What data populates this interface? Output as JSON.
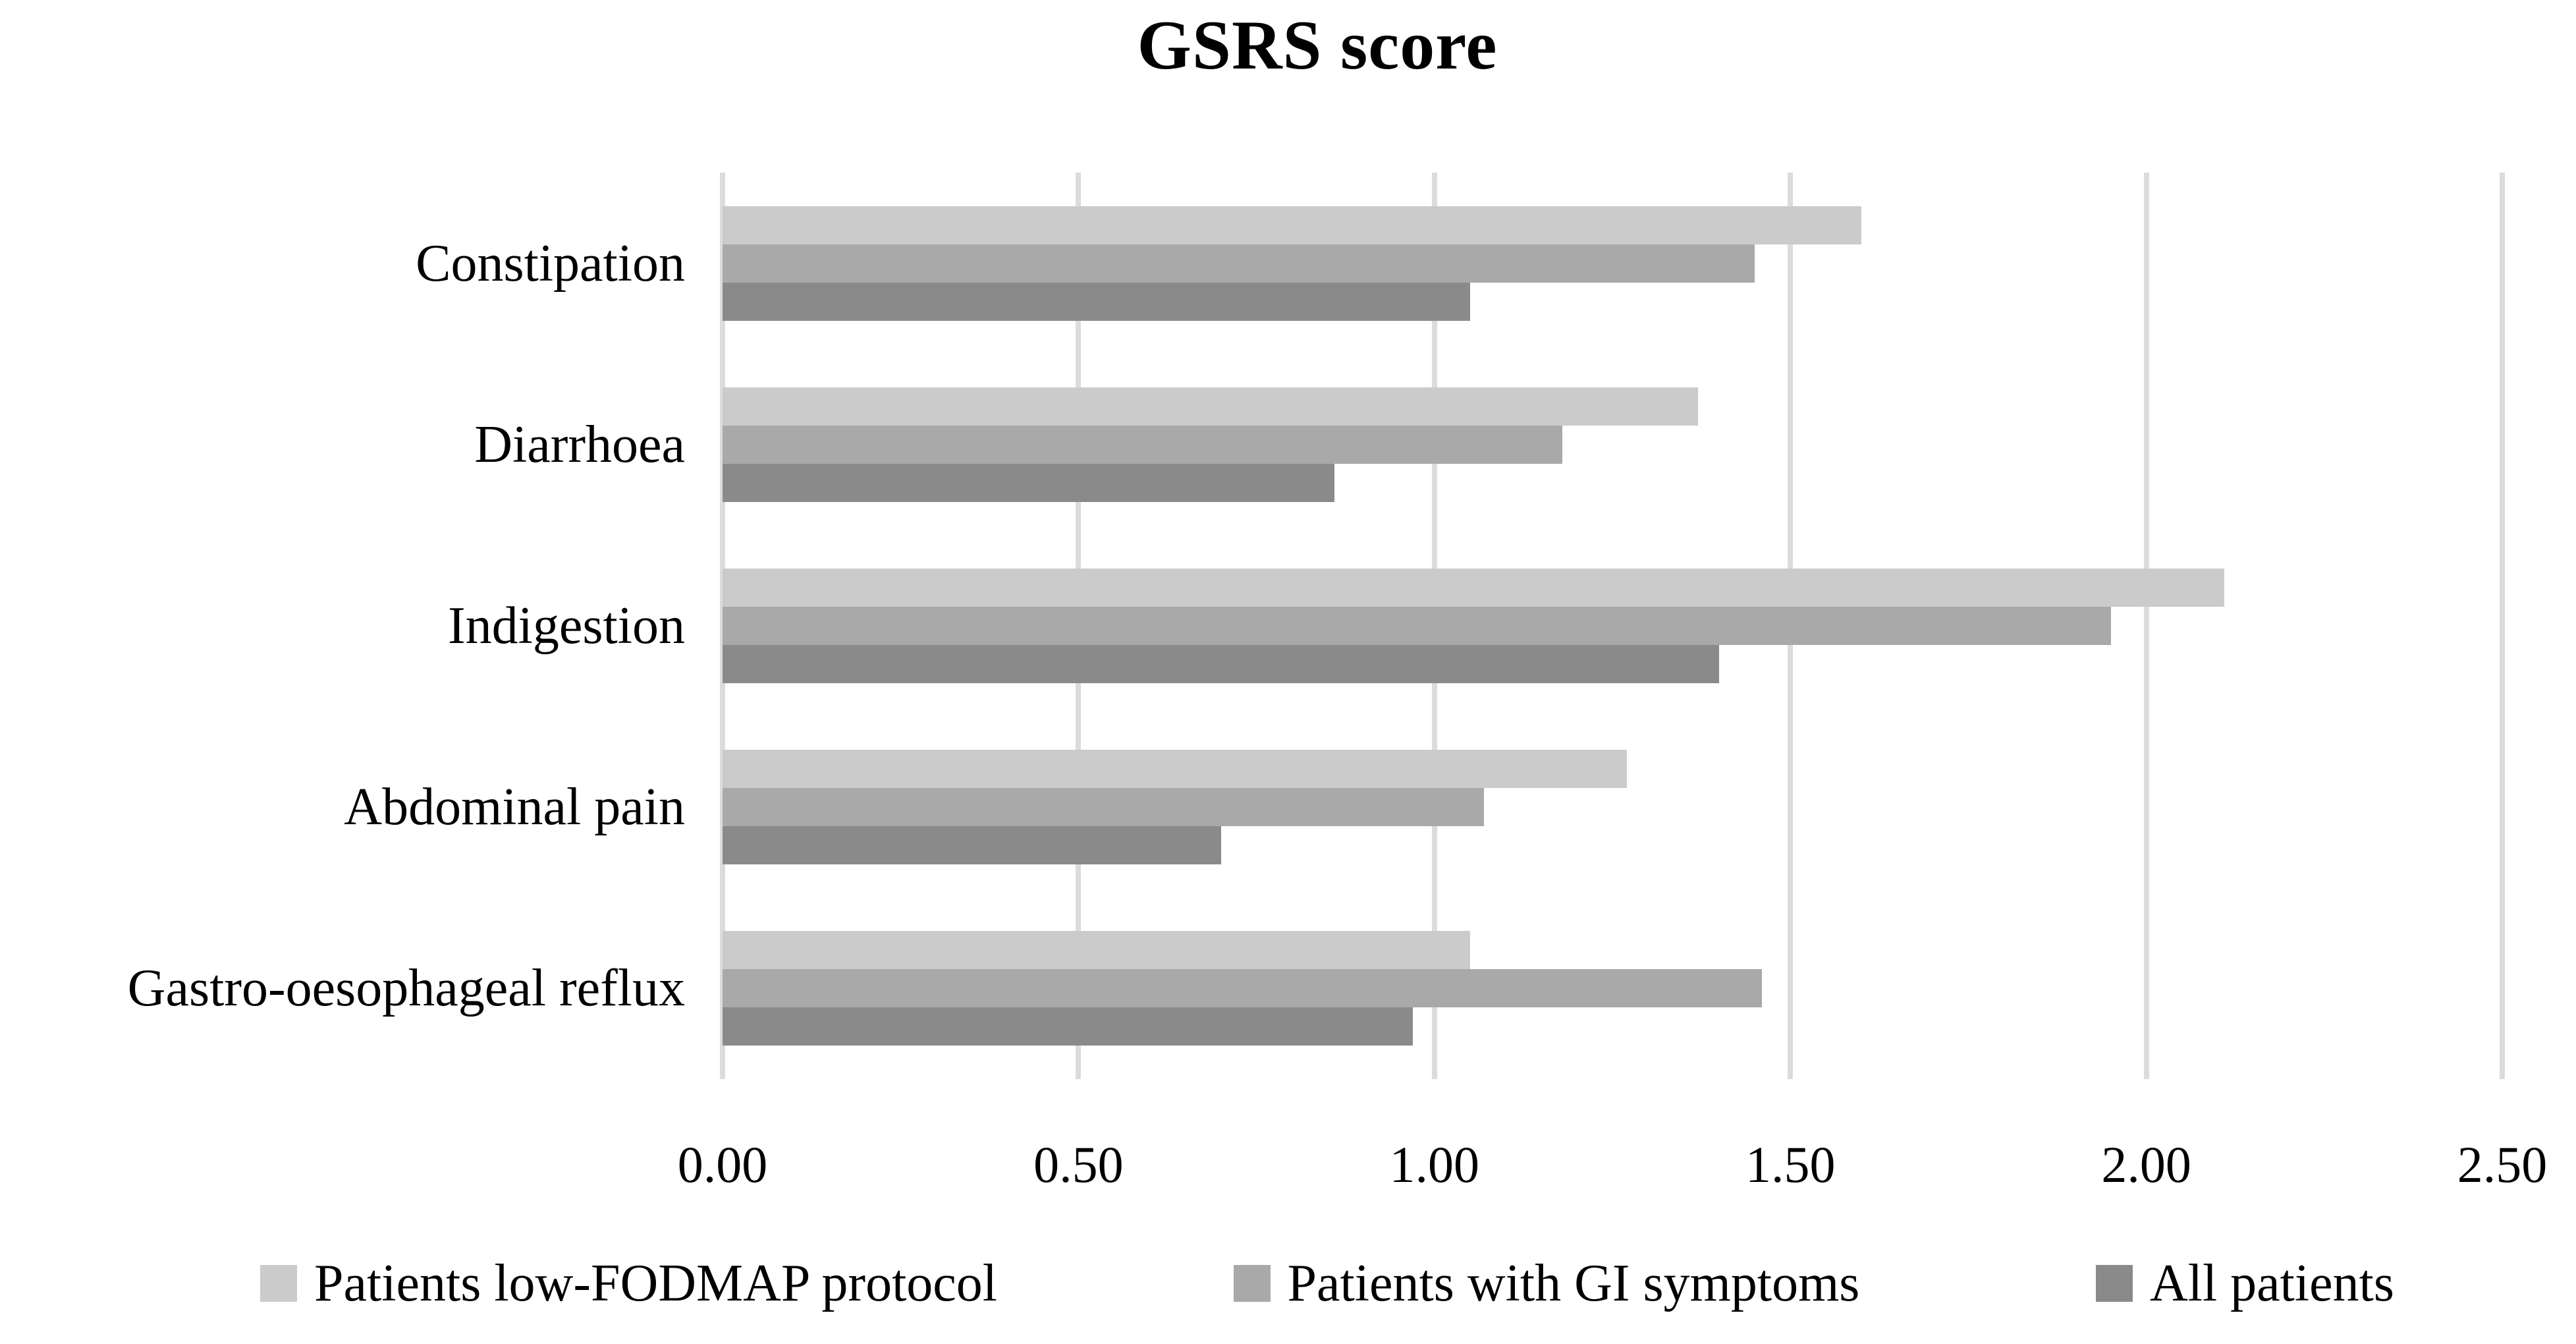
{
  "title": "GSRS score",
  "colors": {
    "background": "#FFFFFF",
    "gridline": "#DCDCDC",
    "text": "#000000",
    "series_light": "#CBCBCB",
    "series_medium": "#A9A9A9",
    "series_dark": "#8A8A8A"
  },
  "chart_data": {
    "type": "bar",
    "orientation": "horizontal",
    "title": "GSRS score",
    "xlabel": "",
    "ylabel": "",
    "xlim": [
      0,
      2.5
    ],
    "xtick_step": 0.5,
    "xticks": [
      "0.00",
      "0.50",
      "1.00",
      "1.50",
      "2.00",
      "2.50"
    ],
    "grid": true,
    "legend_position": "bottom",
    "categories": [
      "Constipation",
      "Diarrhoea",
      "Indigestion",
      "Abdominal pain",
      "Gastro-oesophageal reflux"
    ],
    "series": [
      {
        "name": "Patients low-FODMAP protocol",
        "color": "#CBCBCB",
        "values": [
          1.6,
          1.37,
          2.11,
          1.27,
          1.05
        ]
      },
      {
        "name": "Patients with GI symptoms",
        "color": "#A9A9A9",
        "values": [
          1.45,
          1.18,
          1.95,
          1.07,
          1.46
        ]
      },
      {
        "name": "All patients",
        "color": "#8A8A8A",
        "values": [
          1.05,
          0.86,
          1.4,
          0.7,
          0.97
        ]
      }
    ]
  }
}
